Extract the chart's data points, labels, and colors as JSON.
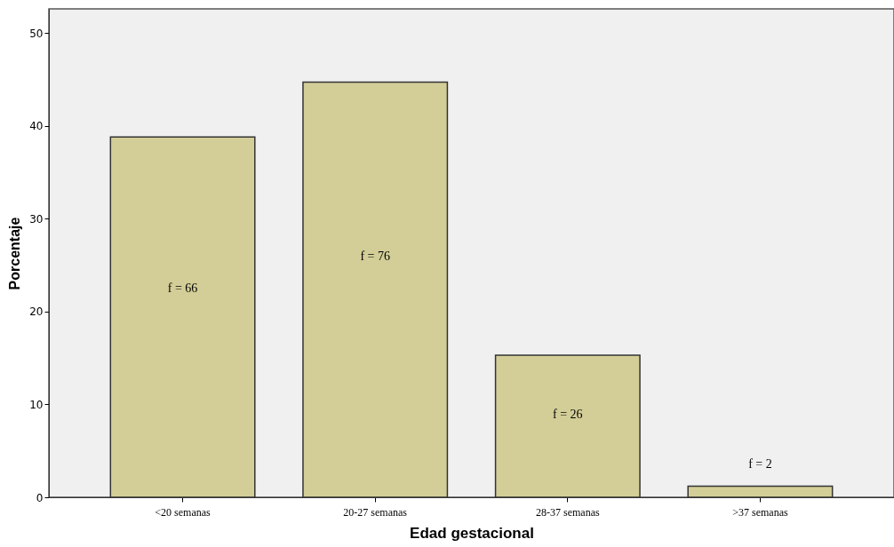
{
  "chart_data": {
    "type": "bar",
    "xlabel": "Edad gestacional",
    "ylabel": "Porcentaje",
    "categories": [
      "<20 semanas",
      "20-27 semanas",
      "28-37 semanas",
      ">37 semanas"
    ],
    "values": [
      38.8,
      44.7,
      15.3,
      1.2
    ],
    "color": "#d3ce97",
    "annotations": [
      "f = 66",
      "f = 76",
      "f = 26",
      "f = 2"
    ],
    "ylim": [
      0,
      52.6
    ],
    "yticks": [
      0,
      10,
      20,
      30,
      40,
      50
    ],
    "grid": false
  }
}
